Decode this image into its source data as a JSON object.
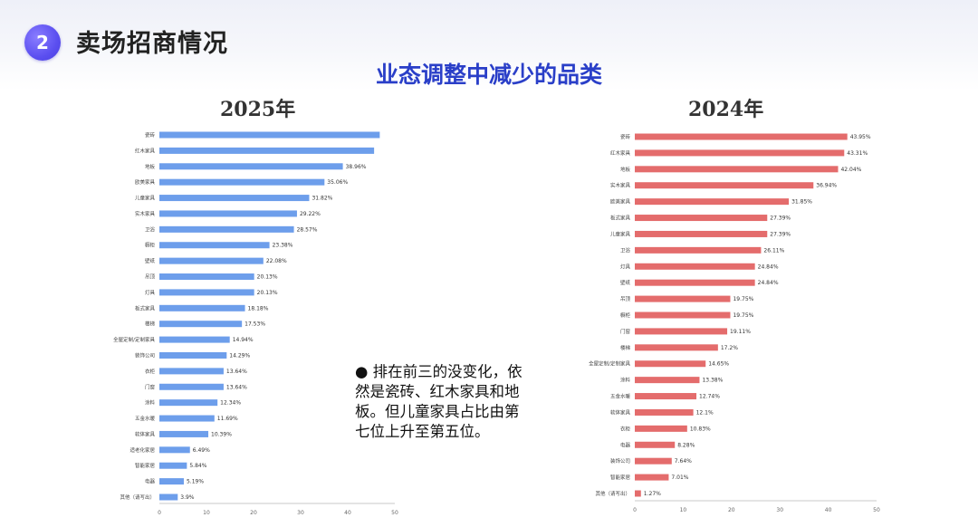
{
  "header": {
    "badge_number": "2",
    "title": "卖场招商情况",
    "subtitle": "业态调整中减少的品类"
  },
  "note": {
    "bullet": "●",
    "text": " 排在前三的没变化，依然是瓷砖、红木家具和地板。但儿童家具占比由第七位上升至第五位。"
  },
  "colors": {
    "left_bar": "#6d9eeb",
    "right_bar": "#e46c6c",
    "subtitle": "#2a3fc8",
    "badge": "#5b4ff0"
  },
  "chart_data": [
    {
      "type": "bar",
      "orientation": "horizontal",
      "title": "2025年",
      "xlim": [
        0,
        50
      ],
      "xticks": [
        0,
        10,
        20,
        30,
        40,
        50
      ],
      "categories": [
        "瓷砖",
        "红木家具",
        "地板",
        "欧美家具",
        "儿童家具",
        "实木家具",
        "卫浴",
        "橱柜",
        "壁纸",
        "吊顶",
        "灯具",
        "板式家具",
        "楼梯",
        "全屋定制/定制家具",
        "装饰公司",
        "衣柜",
        "门窗",
        "涂料",
        "五金水暖",
        "软体家具",
        "适老化家居",
        "智能家居",
        "电器",
        "其他（请写出）"
      ],
      "values": [
        46.8,
        45.6,
        38.96,
        35.06,
        31.82,
        29.22,
        28.57,
        23.38,
        22.08,
        20.13,
        20.13,
        18.18,
        17.53,
        14.94,
        14.29,
        13.64,
        13.64,
        12.34,
        11.69,
        10.39,
        6.49,
        5.84,
        5.19,
        3.9
      ],
      "labels": [
        "",
        "",
        "38.96%",
        "35.06%",
        "31.82%",
        "29.22%",
        "28.57%",
        "23.38%",
        "22.08%",
        "20.13%",
        "20.13%",
        "18.18%",
        "17.53%",
        "14.94%",
        "14.29%",
        "13.64%",
        "13.64%",
        "12.34%",
        "11.69%",
        "10.39%",
        "6.49%",
        "5.84%",
        "5.19%",
        "3.9%"
      ]
    },
    {
      "type": "bar",
      "orientation": "horizontal",
      "title": "2024年",
      "xlim": [
        0,
        50
      ],
      "xticks": [
        0,
        10,
        20,
        30,
        40,
        50
      ],
      "categories": [
        "瓷砖",
        "红木家具",
        "地板",
        "实木家具",
        "欧美家具",
        "板式家具",
        "儿童家具",
        "卫浴",
        "灯具",
        "壁纸",
        "吊顶",
        "橱柜",
        "门窗",
        "楼梯",
        "全屋定制/定制家具",
        "涂料",
        "五金水暖",
        "软体家具",
        "衣柜",
        "电器",
        "装饰公司",
        "智能家居",
        "其他（请写出）"
      ],
      "values": [
        43.95,
        43.31,
        42.04,
        36.94,
        31.85,
        27.39,
        27.39,
        26.11,
        24.84,
        24.84,
        19.75,
        19.75,
        19.11,
        17.2,
        14.65,
        13.38,
        12.74,
        12.1,
        10.83,
        8.28,
        7.64,
        7.01,
        1.27
      ],
      "labels": [
        "43.95%",
        "43.31%",
        "42.04%",
        "36.94%",
        "31.85%",
        "27.39%",
        "27.39%",
        "26.11%",
        "24.84%",
        "24.84%",
        "19.75%",
        "19.75%",
        "19.11%",
        "17.2%",
        "14.65%",
        "13.38%",
        "12.74%",
        "12.1%",
        "10.83%",
        "8.28%",
        "7.64%",
        "7.01%",
        "1.27%"
      ]
    }
  ]
}
